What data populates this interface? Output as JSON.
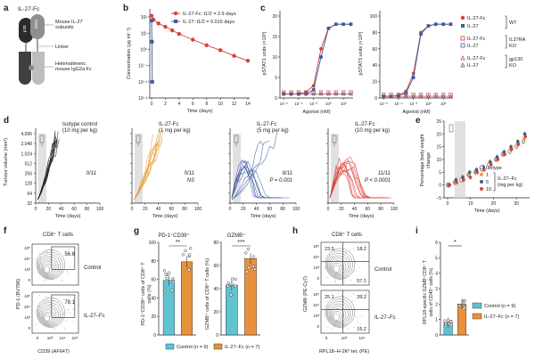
{
  "panel_letters": {
    "a": "a",
    "b": "b",
    "c": "c",
    "d": "d",
    "e": "e",
    "f": "f",
    "g": "g",
    "h": "h",
    "i": "i"
  },
  "panel_a": {
    "title": "IL-27-Fc",
    "ebi3": "EBI3",
    "p28": "p28",
    "label_subunits": "Mouse IL-27",
    "label_subunits2": "subunits",
    "label_linker": "Linker",
    "label_fc1": "Heterodimeric",
    "label_fc2": "mouse IgG2a Fc"
  },
  "panel_b": {
    "ylabel": "Concentration (μg ml⁻¹)",
    "xlabel": "Time (days)",
    "legend": [
      "IL-27-Fc: t1/2 = 2.9 days",
      "IL-27: t1/2 = 0.015 days"
    ],
    "yticks": [
      "10²",
      "10¹",
      "10⁰",
      "10⁻¹",
      "10⁻²",
      "10⁻³"
    ],
    "xticks": [
      "0",
      "2",
      "4",
      "6",
      "8",
      "10",
      "12",
      "14"
    ],
    "colors": {
      "fc": "#d9403a",
      "il27": "#3a5ba0"
    }
  },
  "panel_c": {
    "left_ylabel": "pSTAT1 units (×10³)",
    "right_ylabel": "pSTAT3 units (×10³)",
    "xlabel": "Agonist (nM)",
    "left_yticks": [
      "0",
      "5",
      "10",
      "15",
      "20"
    ],
    "right_yticks": [
      "0",
      "20",
      "40",
      "60",
      "80",
      "100"
    ],
    "xticks": [
      "10⁻⁶",
      "10⁻⁴",
      "10⁻²",
      "10⁰",
      "10²"
    ],
    "legend": [
      {
        "name": "IL-27-Fc",
        "group": "WT"
      },
      {
        "name": "IL-27",
        "group": ""
      },
      {
        "name": "IL-27-Fc",
        "group": "IL27RA"
      },
      {
        "name": "IL-27",
        "group": "KO"
      },
      {
        "name": "IL-27-Fc",
        "group": "gp130"
      },
      {
        "name": "IL-27",
        "group": "KO"
      }
    ]
  },
  "panel_d": {
    "ylabel": "Tumour volume (mm³)",
    "xlabel": "Time (days)",
    "yticks": [
      "4,096",
      "2,048",
      "1,024",
      "512",
      "256",
      "128",
      "64",
      "32"
    ],
    "xticks": [
      "0",
      "20",
      "40",
      "60",
      "80",
      "100"
    ],
    "subplots": [
      {
        "title1": "Isotype control",
        "title2": "(10 mg per kg)",
        "stat": "0/11",
        "p": "",
        "color": "#222222"
      },
      {
        "title1": "IL-27-Fc",
        "title2": "(1 mg per kg)",
        "stat": "0/11",
        "p": "NS",
        "color": "#e8a33d"
      },
      {
        "title1": "IL-27-Fc",
        "title2": "(5 mg per kg)",
        "stat": "8/11",
        "p": "P = 0.001",
        "color": "#3a5ba0"
      },
      {
        "title1": "IL-27-Fc",
        "title2": "(10 mg per kg)",
        "stat": "11/11",
        "p": "P < 0.0001",
        "color": "#d9403a"
      }
    ]
  },
  "panel_e": {
    "ylabel1": "Percentage body weight",
    "ylabel2": "change",
    "xlabel": "Time (days)",
    "yticks": [
      "25",
      "20",
      "15",
      "10",
      "5",
      "0",
      "−5"
    ],
    "xticks": [
      "0",
      "10",
      "20",
      "30"
    ],
    "legend": [
      "Isotype",
      "1",
      "5",
      "10"
    ],
    "legend_title1": "IL-27–Fc",
    "legend_title2": "(mg per kg)"
  },
  "panel_f": {
    "title": "CD8⁺ T cells",
    "ylabel": "PD-1 (BV786)",
    "xlabel": "CD39 (AF647)",
    "top_value": "56.6",
    "bottom_value": "78.1",
    "top_group": "Control",
    "bottom_group": "IL-27–Fc"
  },
  "panel_g": {
    "left_title": "PD-1⁺CD39⁺",
    "right_title": "GZMB⁺",
    "left_ylabel1": "PD-1⁺CD39⁺ cells of CD8⁺ T",
    "left_ylabel2": "cells (%)",
    "right_ylabel1": "GZMB⁺ cells of CD8⁺ T cells (%)",
    "left_sig": "**",
    "right_sig": "***",
    "left_yticks": [
      "0",
      "20",
      "40",
      "60",
      "80",
      "100"
    ],
    "right_yticks": [
      "0",
      "20",
      "40",
      "60",
      "80"
    ],
    "legend": [
      "Control (n = 9)",
      "IL-27–Fc (n = 7)"
    ]
  },
  "panel_h": {
    "title": "CD8⁺ T cells",
    "ylabel": "GZMB (PE-Cy7)",
    "xlabel": "RPL18–H-2Kᵇ tet. (PE)",
    "top_values": [
      "23.5",
      "18.2",
      "57.1"
    ],
    "bottom_values": [
      "25.1",
      "39.2",
      "16.2"
    ],
    "top_group": "Control",
    "bottom_group": "IL-27–Fc"
  },
  "panel_i": {
    "ylabel1": "RPL18-specific GZMB⁺CD8⁺ T",
    "ylabel2": "cells of CD45⁺ cells (%)",
    "sig": "*",
    "yticks": [
      "0",
      "1",
      "2",
      "3",
      "4",
      "5",
      "6"
    ],
    "legend": [
      "Control (n = 9)",
      "IL-27–Fc (n = 7)"
    ]
  },
  "chart_data": [
    {
      "type": "line",
      "title": "",
      "xlabel": "Time (days)",
      "ylabel": "Concentration (μg ml⁻¹)",
      "series": [
        {
          "name": "IL-27-Fc: t1/2 = 2.9 days",
          "x": [
            0,
            0.25,
            1,
            2,
            3,
            4,
            6,
            8,
            10,
            12,
            14
          ],
          "y": [
            120,
            70,
            40,
            25,
            15,
            9,
            4,
            1.8,
            0.9,
            0.4,
            0.2
          ]
        },
        {
          "name": "IL-27: t1/2 = 0.015 days",
          "x": [
            0,
            0.05,
            0.1
          ],
          "y": [
            60,
            3,
            0.01
          ]
        }
      ],
      "yscale": "log",
      "ylim": [
        0.001,
        100
      ],
      "xlim": [
        0,
        14
      ]
    },
    {
      "type": "line",
      "title": "",
      "xlabel": "Agonist (nM)",
      "ylabel": "pSTAT1 units (×10³)",
      "xscale": "log",
      "x": [
        1e-06,
        1e-05,
        0.0001,
        0.001,
        0.01,
        0.1,
        1,
        10,
        100,
        1000
      ],
      "series": [
        {
          "name": "IL-27-Fc WT",
          "values": [
            1,
            1,
            1,
            1.5,
            3,
            12,
            17,
            18,
            18,
            18
          ]
        },
        {
          "name": "IL-27 WT",
          "values": [
            1,
            1,
            1,
            1,
            2,
            10,
            17,
            18,
            18,
            18
          ]
        },
        {
          "name": "KO",
          "values": [
            1,
            1,
            1,
            1,
            1,
            1,
            1,
            1,
            1,
            1
          ]
        }
      ],
      "ylim": [
        0,
        20
      ]
    },
    {
      "type": "line",
      "title": "",
      "xlabel": "Agonist (nM)",
      "ylabel": "pSTAT3 units (×10³)",
      "xscale": "log",
      "x": [
        1e-06,
        1e-05,
        0.0001,
        0.001,
        0.01,
        0.1,
        1,
        10,
        100,
        1000
      ],
      "series": [
        {
          "name": "IL-27-Fc WT",
          "values": [
            2,
            2,
            3,
            8,
            30,
            80,
            88,
            90,
            90,
            90
          ]
        },
        {
          "name": "IL-27 WT",
          "values": [
            2,
            2,
            3,
            6,
            25,
            78,
            88,
            90,
            90,
            90
          ]
        },
        {
          "name": "KO",
          "values": [
            2,
            2,
            2,
            2,
            2,
            2,
            2,
            2,
            2,
            2
          ]
        }
      ],
      "ylim": [
        0,
        100
      ]
    },
    {
      "type": "line",
      "title": "",
      "xlabel": "Time (days)",
      "ylabel": "Percentage body weight change",
      "x": [
        0,
        3,
        6,
        9,
        12,
        15,
        18,
        21,
        24,
        27,
        30,
        33
      ],
      "series": [
        {
          "name": "Isotype",
          "values": [
            0,
            1,
            2,
            4,
            5,
            6,
            8,
            10,
            12,
            13,
            15,
            17
          ]
        },
        {
          "name": "1",
          "values": [
            0,
            1,
            3,
            4,
            5,
            7,
            9,
            10,
            12,
            14,
            16,
            18
          ]
        },
        {
          "name": "5",
          "values": [
            0,
            2,
            3,
            5,
            6,
            7,
            9,
            11,
            13,
            15,
            17,
            20
          ]
        },
        {
          "name": "10",
          "values": [
            0,
            1,
            2,
            3,
            5,
            6,
            8,
            10,
            12,
            14,
            16,
            19
          ]
        }
      ],
      "ylim": [
        -5,
        25
      ]
    },
    {
      "type": "bar",
      "title": "PD-1⁺CD39⁺",
      "categories": [
        "Control (n = 9)",
        "IL-27–Fc (n = 7)"
      ],
      "values": [
        59,
        79
      ],
      "ylim": [
        0,
        100
      ]
    },
    {
      "type": "bar",
      "title": "GZMB⁺",
      "categories": [
        "Control (n = 9)",
        "IL-27–Fc (n = 7)"
      ],
      "values": [
        43,
        66
      ],
      "ylim": [
        0,
        80
      ]
    },
    {
      "type": "bar",
      "title": "",
      "categories": [
        "Control (n = 9)",
        "IL-27–Fc (n = 7)"
      ],
      "values": [
        0.8,
        2.0
      ],
      "ylim": [
        0,
        6
      ]
    }
  ]
}
